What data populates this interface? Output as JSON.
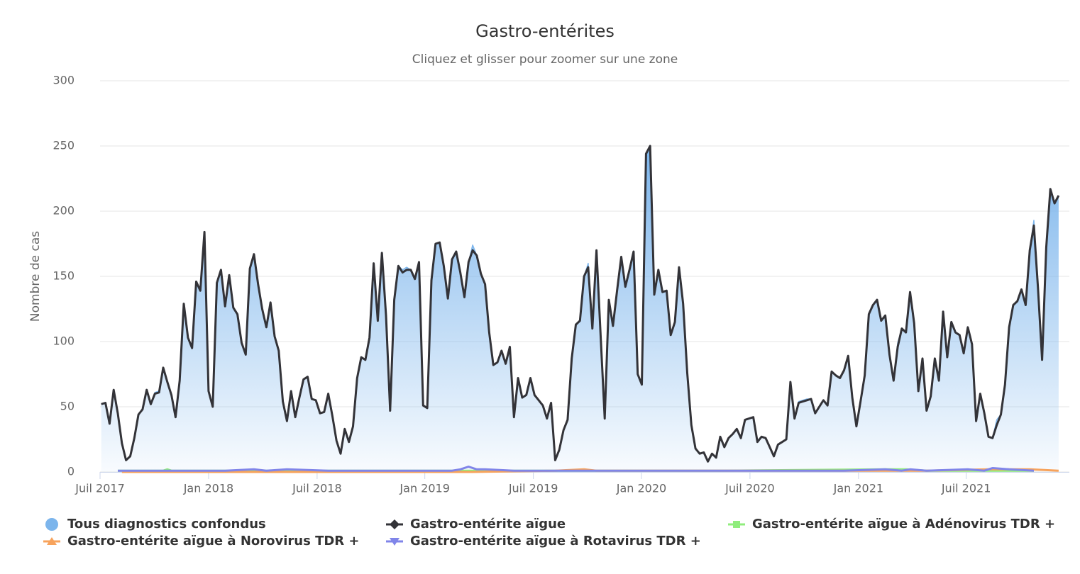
{
  "chart_data": {
    "type": "line",
    "title": "Gastro-entérites",
    "subtitle": "Cliquez et glisser pour zoomer sur une zone",
    "y_label": "Nombre de cas",
    "x": [
      0,
      1,
      2,
      3,
      4,
      5,
      6,
      7,
      8,
      9,
      10,
      11,
      12,
      13,
      14,
      15,
      16,
      17,
      18,
      19,
      20,
      21,
      22,
      23,
      24,
      25,
      26,
      27,
      28,
      29,
      30,
      31,
      32,
      33,
      34,
      35,
      36,
      37,
      38,
      39,
      40,
      41,
      42,
      43,
      44,
      45,
      46,
      47,
      48,
      49,
      50,
      51,
      52,
      53,
      54,
      55,
      56,
      57,
      58,
      59,
      60,
      61,
      62,
      63,
      64,
      65,
      66,
      67,
      68,
      69,
      70,
      71,
      72,
      73,
      74,
      75,
      76,
      77,
      78,
      79,
      80,
      81,
      82,
      83,
      84,
      85,
      86,
      87,
      88,
      89,
      90,
      91,
      92,
      93,
      94,
      95,
      96,
      97,
      98,
      99,
      100,
      101,
      102,
      103,
      104,
      105,
      106,
      107,
      108,
      109,
      110,
      111,
      112,
      113,
      114,
      115,
      116,
      117,
      118,
      119,
      120,
      121,
      122,
      123,
      124,
      125,
      126,
      127,
      128,
      129,
      130,
      131,
      132,
      133,
      134,
      135,
      136,
      137,
      138,
      139,
      140,
      141,
      142,
      143,
      144,
      145,
      146,
      147,
      148,
      149,
      150,
      151,
      152,
      153,
      154,
      155,
      156,
      157,
      158,
      159,
      160,
      161,
      162,
      163,
      164,
      165,
      166,
      167,
      168,
      169,
      170,
      171,
      172,
      173,
      174,
      175,
      176,
      177,
      178,
      179,
      180,
      181,
      182,
      183,
      184,
      185,
      186,
      187,
      188,
      189,
      190,
      191,
      192,
      193,
      194,
      195,
      196,
      197,
      198,
      199,
      200,
      201,
      202,
      203,
      204,
      205,
      206,
      207,
      208,
      209,
      210,
      211,
      212,
      213,
      214,
      215,
      216,
      217,
      218,
      219,
      220,
      221,
      222,
      223,
      224,
      225,
      226,
      227,
      228,
      229,
      230,
      231,
      232
    ],
    "series": [
      {
        "name": "Tous diagnostics confondus",
        "color": "#7cb5ec",
        "marker": "circle",
        "area": true,
        "values": [
          52,
          53,
          37,
          63,
          45,
          22,
          9,
          12,
          26,
          44,
          48,
          63,
          52,
          61,
          62,
          80,
          69,
          59,
          42,
          70,
          129,
          103,
          95,
          146,
          139,
          184,
          62,
          50,
          145,
          155,
          127,
          151,
          126,
          121,
          99,
          90,
          156,
          167,
          144,
          125,
          111,
          130,
          104,
          93,
          54,
          39,
          62,
          42,
          57,
          71,
          73,
          56,
          55,
          45,
          46,
          60,
          43,
          24,
          14,
          33,
          23,
          35,
          72,
          88,
          86,
          103,
          160,
          116,
          168,
          120,
          47,
          132,
          158,
          155,
          157,
          155,
          148,
          161,
          51,
          49,
          147,
          175,
          176,
          158,
          133,
          163,
          169,
          153,
          134,
          161,
          174,
          166,
          152,
          144,
          107,
          82,
          84,
          93,
          83,
          96,
          42,
          72,
          57,
          59,
          72,
          59,
          55,
          51,
          41,
          53,
          9,
          17,
          32,
          40,
          87,
          113,
          116,
          150,
          160,
          110,
          170,
          105,
          41,
          132,
          112,
          139,
          165,
          142,
          155,
          169,
          75,
          67,
          244,
          250,
          136,
          155,
          138,
          139,
          105,
          115,
          157,
          129,
          76,
          36,
          18,
          14,
          15,
          8,
          14,
          11,
          27,
          19,
          26,
          29,
          33,
          26,
          40,
          41,
          42,
          23,
          27,
          26,
          19,
          12,
          21,
          23,
          25,
          69,
          41,
          54,
          55,
          56,
          56,
          45,
          50,
          55,
          51,
          77,
          74,
          72,
          78,
          89,
          57,
          35,
          54,
          74,
          121,
          128,
          132,
          116,
          120,
          90,
          70,
          99,
          110,
          107,
          138,
          114,
          62,
          87,
          47,
          58,
          87,
          70,
          123,
          88,
          115,
          107,
          105,
          91,
          111,
          98,
          39,
          60,
          45,
          27,
          26,
          40,
          44,
          67,
          111,
          128,
          131,
          140,
          128,
          170,
          193,
          141,
          86,
          172,
          217,
          206,
          212
        ]
      },
      {
        "name": "Gastro-entérite aïgue",
        "color": "#333338",
        "marker": "diamond",
        "values": [
          52,
          53,
          37,
          63,
          45,
          22,
          9,
          12,
          26,
          44,
          48,
          63,
          52,
          60,
          61,
          80,
          69,
          59,
          42,
          70,
          129,
          103,
          95,
          146,
          139,
          184,
          62,
          50,
          145,
          155,
          127,
          151,
          126,
          121,
          99,
          90,
          156,
          167,
          144,
          125,
          111,
          130,
          104,
          93,
          54,
          39,
          62,
          42,
          57,
          71,
          73,
          56,
          55,
          45,
          46,
          60,
          43,
          24,
          14,
          33,
          23,
          35,
          72,
          88,
          86,
          103,
          160,
          116,
          168,
          120,
          47,
          132,
          158,
          153,
          155,
          155,
          148,
          161,
          51,
          49,
          147,
          175,
          176,
          158,
          133,
          163,
          169,
          153,
          134,
          161,
          170,
          166,
          152,
          144,
          107,
          82,
          84,
          93,
          83,
          96,
          42,
          72,
          57,
          59,
          72,
          59,
          55,
          51,
          41,
          53,
          9,
          17,
          32,
          40,
          87,
          113,
          116,
          150,
          157,
          110,
          170,
          105,
          41,
          132,
          112,
          139,
          165,
          142,
          155,
          169,
          75,
          67,
          244,
          250,
          136,
          155,
          138,
          139,
          105,
          115,
          157,
          129,
          76,
          36,
          18,
          14,
          15,
          8,
          14,
          11,
          27,
          19,
          26,
          29,
          33,
          26,
          40,
          41,
          42,
          23,
          27,
          26,
          19,
          12,
          21,
          23,
          25,
          69,
          41,
          53,
          54,
          55,
          56,
          45,
          50,
          55,
          51,
          77,
          74,
          72,
          78,
          89,
          57,
          35,
          54,
          74,
          121,
          128,
          132,
          116,
          120,
          90,
          70,
          96,
          110,
          107,
          138,
          114,
          62,
          87,
          47,
          58,
          87,
          70,
          123,
          88,
          115,
          107,
          105,
          91,
          111,
          98,
          39,
          60,
          45,
          27,
          26,
          36,
          44,
          67,
          111,
          128,
          131,
          140,
          128,
          170,
          189,
          141,
          86,
          172,
          217,
          206,
          212
        ]
      },
      {
        "name": "Gastro-entérite aïgue à Adénovirus TDR +",
        "color": "#90ed7d",
        "marker": "square",
        "x": [
          4,
          15,
          16,
          17,
          50,
          100,
          150,
          190,
          195,
          200,
          226
        ],
        "values": [
          1,
          1,
          2,
          1,
          1,
          1,
          1,
          2,
          2,
          1,
          1
        ]
      },
      {
        "name": "Gastro-entérite aïgue à Norovirus TDR +",
        "color": "#f7a35c",
        "marker": "triangle",
        "x": [
          5,
          30,
          60,
          90,
          110,
          117,
          120,
          140,
          160,
          180,
          200,
          215,
          225,
          232
        ],
        "values": [
          0,
          0,
          0,
          0,
          1,
          2,
          1,
          1,
          1,
          1,
          1,
          2,
          2,
          1
        ]
      },
      {
        "name": "Gastro-entérite aïgue à Rotavirus TDR +",
        "color": "#8085e9",
        "marker": "triangle-down",
        "x": [
          4,
          20,
          30,
          37,
          40,
          45,
          55,
          70,
          85,
          87,
          89,
          91,
          93,
          100,
          110,
          130,
          150,
          160,
          170,
          180,
          190,
          194,
          196,
          200,
          210,
          214,
          216,
          220,
          226
        ],
        "values": [
          1,
          1,
          1,
          2,
          1,
          2,
          1,
          1,
          1,
          2,
          4,
          2,
          2,
          1,
          1,
          1,
          1,
          1,
          1,
          1,
          2,
          1,
          2,
          1,
          2,
          1,
          3,
          2,
          1
        ]
      }
    ],
    "xlim": [
      -0.3,
      234.6
    ],
    "xticks": [
      {
        "value": -0.3,
        "label": "Juil 2017"
      },
      {
        "value": 26,
        "label": "Jan 2018"
      },
      {
        "value": 52.3,
        "label": "Juil 2018"
      },
      {
        "value": 78.4,
        "label": "Jan 2019"
      },
      {
        "value": 104.7,
        "label": "Juil 2019"
      },
      {
        "value": 130.9,
        "label": "Jan 2020"
      },
      {
        "value": 157.2,
        "label": "Juil 2020"
      },
      {
        "value": 183.5,
        "label": "Jan 2021"
      },
      {
        "value": 209.6,
        "label": "Juil 2021"
      }
    ],
    "ylim": [
      0,
      300
    ],
    "yticks": [
      0,
      50,
      100,
      150,
      200,
      250,
      300
    ],
    "grid": true
  }
}
